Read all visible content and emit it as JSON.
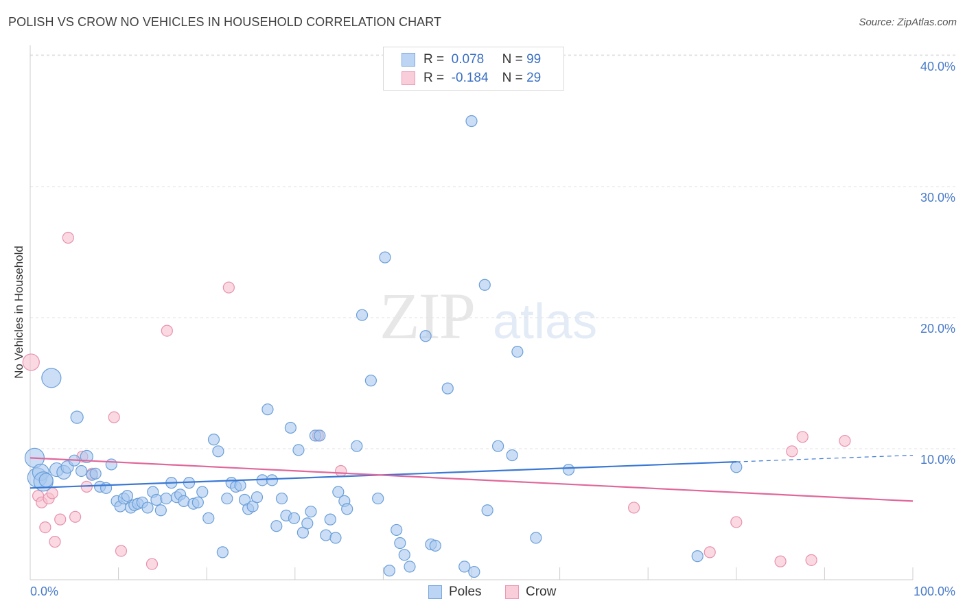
{
  "title": "POLISH VS CROW NO VEHICLES IN HOUSEHOLD CORRELATION CHART",
  "source": "Source: ZipAtlas.com",
  "watermark": {
    "zip": "ZIP",
    "atlas": "atlas"
  },
  "legend": {
    "r_label": "R =",
    "n_label": "N =",
    "rows": [
      {
        "r": "0.078",
        "n": "99"
      },
      {
        "r": "-0.184",
        "n": "29"
      }
    ]
  },
  "colors": {
    "poles_fill": "#a9c8f0",
    "poles_stroke": "#6b9fd8",
    "poles_line": "#3a78d4",
    "crow_fill": "#f7bfcf",
    "crow_stroke": "#e891ad",
    "crow_line": "#e0679a",
    "grid": "#e0e0e0",
    "axis_text": "#4a7cc9"
  },
  "chart_data": {
    "type": "scatter",
    "title": "POLISH VS CROW NO VEHICLES IN HOUSEHOLD CORRELATION CHART",
    "xlabel": "",
    "ylabel": "No Vehicles in Household",
    "xlim": [
      0,
      100
    ],
    "ylim": [
      0,
      42
    ],
    "x_tick_labels": [
      "0.0%",
      "100.0%"
    ],
    "y_ticks": [
      10,
      20,
      30,
      40
    ],
    "y_tick_labels": [
      "10.0%",
      "20.0%",
      "30.0%",
      "40.0%"
    ],
    "grid": "horizontal dashed",
    "legend_position": "top-center",
    "series": [
      {
        "name": "Poles",
        "r": 0.078,
        "n": 99,
        "trend": {
          "x0": 0,
          "y0": 7.0,
          "x1": 80,
          "y1": 9.0,
          "dashed_to_x": 100,
          "dashed_to_y": 9.5
        },
        "points": [
          [
            0.5,
            9.3,
            14
          ],
          [
            0.8,
            7.8,
            14
          ],
          [
            1.2,
            8.2,
            12
          ],
          [
            1.5,
            7.5,
            14
          ],
          [
            1.8,
            7.6,
            10
          ],
          [
            2.4,
            15.4,
            14
          ],
          [
            3.0,
            8.4,
            10
          ],
          [
            3.8,
            8.2,
            10
          ],
          [
            4.2,
            8.6,
            9
          ],
          [
            5.0,
            9.1,
            8
          ],
          [
            5.3,
            12.4,
            9
          ],
          [
            5.8,
            8.3,
            8
          ],
          [
            6.4,
            9.4,
            9
          ],
          [
            7.0,
            8.0,
            8
          ],
          [
            7.4,
            8.1,
            8
          ],
          [
            7.9,
            7.1,
            8
          ],
          [
            8.6,
            7.0,
            8
          ],
          [
            9.2,
            8.8,
            8
          ],
          [
            9.8,
            6.0,
            8
          ],
          [
            10.2,
            5.6,
            8
          ],
          [
            10.6,
            6.2,
            8
          ],
          [
            11.0,
            6.4,
            8
          ],
          [
            11.4,
            5.5,
            8
          ],
          [
            11.8,
            5.7,
            8
          ],
          [
            12.2,
            5.8,
            8
          ],
          [
            12.7,
            5.9,
            8
          ],
          [
            13.3,
            5.5,
            8
          ],
          [
            13.9,
            6.7,
            8
          ],
          [
            14.3,
            6.1,
            8
          ],
          [
            14.8,
            5.3,
            8
          ],
          [
            15.4,
            6.2,
            8
          ],
          [
            16.0,
            7.4,
            8
          ],
          [
            16.6,
            6.3,
            8
          ],
          [
            17.0,
            6.5,
            8
          ],
          [
            17.4,
            6.0,
            8
          ],
          [
            18.0,
            7.4,
            8
          ],
          [
            18.5,
            5.8,
            8
          ],
          [
            19.0,
            5.9,
            8
          ],
          [
            19.5,
            6.7,
            8
          ],
          [
            20.2,
            4.7,
            8
          ],
          [
            20.8,
            10.7,
            8
          ],
          [
            21.3,
            9.8,
            8
          ],
          [
            21.8,
            2.1,
            8
          ],
          [
            22.3,
            6.2,
            8
          ],
          [
            22.8,
            7.4,
            8
          ],
          [
            23.3,
            7.1,
            8
          ],
          [
            23.8,
            7.2,
            8
          ],
          [
            24.3,
            6.1,
            8
          ],
          [
            24.7,
            5.4,
            8
          ],
          [
            25.2,
            5.6,
            8
          ],
          [
            25.7,
            6.3,
            8
          ],
          [
            26.3,
            7.6,
            8
          ],
          [
            26.9,
            13.0,
            8
          ],
          [
            27.4,
            7.6,
            8
          ],
          [
            27.9,
            4.1,
            8
          ],
          [
            28.5,
            6.2,
            8
          ],
          [
            29.0,
            4.9,
            8
          ],
          [
            29.5,
            11.6,
            8
          ],
          [
            29.9,
            4.7,
            8
          ],
          [
            30.4,
            9.9,
            8
          ],
          [
            30.9,
            3.6,
            8
          ],
          [
            31.4,
            4.3,
            8
          ],
          [
            31.8,
            5.2,
            8
          ],
          [
            32.3,
            11.0,
            8
          ],
          [
            32.8,
            11.0,
            8
          ],
          [
            33.5,
            3.4,
            8
          ],
          [
            34.0,
            4.6,
            8
          ],
          [
            34.6,
            3.2,
            8
          ],
          [
            34.9,
            6.7,
            8
          ],
          [
            35.6,
            6.0,
            8
          ],
          [
            35.9,
            5.4,
            8
          ],
          [
            37.0,
            10.2,
            8
          ],
          [
            37.6,
            20.2,
            8
          ],
          [
            38.6,
            15.2,
            8
          ],
          [
            39.4,
            6.2,
            8
          ],
          [
            40.2,
            24.6,
            8
          ],
          [
            40.7,
            0.7,
            8
          ],
          [
            41.5,
            3.8,
            8
          ],
          [
            41.9,
            2.8,
            8
          ],
          [
            42.4,
            1.9,
            8
          ],
          [
            43.0,
            1.0,
            8
          ],
          [
            44.8,
            18.6,
            8
          ],
          [
            45.4,
            2.7,
            8
          ],
          [
            45.9,
            2.6,
            8
          ],
          [
            47.3,
            14.6,
            8
          ],
          [
            49.2,
            1.0,
            8
          ],
          [
            50.0,
            35.0,
            8
          ],
          [
            50.3,
            0.6,
            8
          ],
          [
            51.5,
            22.5,
            8
          ],
          [
            51.8,
            5.3,
            8
          ],
          [
            53.0,
            10.2,
            8
          ],
          [
            54.6,
            9.5,
            8
          ],
          [
            55.2,
            17.4,
            8
          ],
          [
            57.3,
            3.2,
            8
          ],
          [
            61.0,
            8.4,
            8
          ],
          [
            75.6,
            1.8,
            8
          ],
          [
            80.0,
            8.6,
            8
          ],
          [
            81.0,
            0.9,
            0
          ],
          [
            26.0,
            7.2,
            0
          ]
        ]
      },
      {
        "name": "Crow",
        "r": -0.184,
        "n": 29,
        "trend": {
          "x0": 0,
          "y0": 9.3,
          "x1": 100,
          "y1": 6.0
        },
        "points": [
          [
            0.1,
            16.6,
            12
          ],
          [
            0.9,
            6.4,
            8
          ],
          [
            1.3,
            5.9,
            8
          ],
          [
            1.7,
            4.0,
            8
          ],
          [
            2.1,
            6.2,
            8
          ],
          [
            2.5,
            6.6,
            8
          ],
          [
            2.8,
            2.9,
            8
          ],
          [
            3.4,
            4.6,
            8
          ],
          [
            4.3,
            26.1,
            8
          ],
          [
            5.1,
            4.8,
            8
          ],
          [
            5.9,
            9.4,
            8
          ],
          [
            6.4,
            7.1,
            8
          ],
          [
            7.0,
            8.1,
            8
          ],
          [
            9.5,
            12.4,
            8
          ],
          [
            10.3,
            2.2,
            8
          ],
          [
            13.8,
            1.2,
            8
          ],
          [
            15.5,
            19.0,
            8
          ],
          [
            22.5,
            22.3,
            8
          ],
          [
            32.6,
            11.0,
            8
          ],
          [
            35.2,
            8.3,
            8
          ],
          [
            68.4,
            5.5,
            8
          ],
          [
            77.0,
            2.1,
            8
          ],
          [
            80.0,
            4.4,
            8
          ],
          [
            85.0,
            1.4,
            8
          ],
          [
            86.3,
            9.8,
            8
          ],
          [
            87.5,
            10.9,
            8
          ],
          [
            88.5,
            1.5,
            8
          ],
          [
            92.3,
            10.6,
            8
          ],
          [
            3.9,
            9.0,
            0
          ]
        ]
      }
    ]
  }
}
